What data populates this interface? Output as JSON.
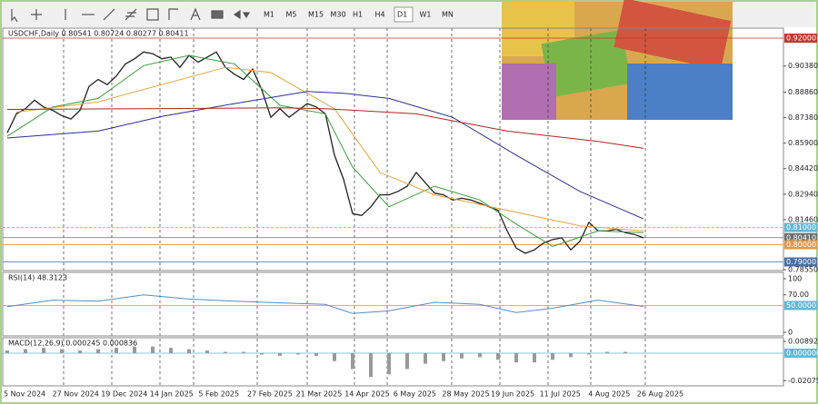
{
  "toolbar": {
    "timeframes": [
      "M1",
      "M5",
      "M15",
      "M30",
      "H1",
      "H4",
      "D1",
      "W1",
      "MN"
    ],
    "active": "D1"
  },
  "dates": [
    "5 Nov 2024",
    "27 Nov 2024",
    "19 Dec 2024",
    "14 Jan 2025",
    "5 Feb 2025",
    "27 Feb 2025",
    "21 Mar 2025",
    "14 Apr 2025",
    "6 May 2025",
    "28 May 2025",
    "19 Jun 2025",
    "11 Jul 2025",
    "4 Aug 2025",
    "26 Aug 2025"
  ],
  "chart_data": [
    {
      "type": "line",
      "title": "USDCHF,Daily  0.80541 0.80724 0.80277 0.80411",
      "xlim": [
        -0.5,
        85.4
      ],
      "ylim": [
        0.785,
        0.9258
      ],
      "yticks": [
        {
          "value": 0.9038,
          "label": "0.90380"
        },
        {
          "value": 0.8886,
          "label": "0.88860"
        },
        {
          "value": 0.8738,
          "label": "0.87380"
        },
        {
          "value": 0.859,
          "label": "0.85900"
        },
        {
          "value": 0.8442,
          "label": "0.84420"
        },
        {
          "value": 0.8294,
          "label": "0.82940"
        },
        {
          "value": 0.8146,
          "label": "0.81460"
        },
        {
          "value": 0.7855,
          "label": "0.78550"
        }
      ],
      "levels": [
        {
          "value": 0.92,
          "label": "0.92000",
          "color": "#c0392b"
        },
        {
          "value": 0.81,
          "label": "0.81000",
          "color": "#5fb8d6"
        },
        {
          "value": 0.8041,
          "label": "0.80410",
          "color": "#6d6d6d"
        },
        {
          "value": 0.8,
          "label": "0.80000",
          "color": "#e39b3c"
        },
        {
          "value": 0.79,
          "label": "0.79000",
          "color": "#4a6fa5"
        }
      ],
      "series": [
        {
          "color": "#222222",
          "x": [
            0,
            1,
            2,
            3,
            4,
            5,
            6,
            7,
            8,
            9,
            10,
            11,
            12,
            13,
            14,
            15,
            16,
            17,
            18,
            19,
            20,
            21,
            22,
            23,
            24,
            25,
            26,
            27,
            28,
            29,
            30,
            31,
            32,
            33,
            34,
            35,
            36,
            37,
            38,
            39,
            40,
            41,
            42,
            43,
            44,
            45,
            46,
            47,
            48,
            49,
            50,
            51,
            52,
            53,
            54,
            55,
            56,
            57,
            58,
            59,
            60,
            61,
            62,
            63,
            64,
            65,
            66,
            67,
            68,
            69,
            70
          ],
          "values": [
            0.865,
            0.876,
            0.879,
            0.884,
            0.88,
            0.878,
            0.875,
            0.873,
            0.878,
            0.892,
            0.896,
            0.893,
            0.898,
            0.905,
            0.908,
            0.912,
            0.911,
            0.908,
            0.909,
            0.903,
            0.91,
            0.906,
            0.909,
            0.912,
            0.903,
            0.899,
            0.896,
            0.902,
            0.89,
            0.874,
            0.879,
            0.874,
            0.878,
            0.882,
            0.88,
            0.876,
            0.852,
            0.838,
            0.818,
            0.817,
            0.822,
            0.829,
            0.829,
            0.831,
            0.834,
            0.842,
            0.836,
            0.83,
            0.829,
            0.826,
            0.827,
            0.826,
            0.824,
            0.822,
            0.82,
            0.808,
            0.798,
            0.795,
            0.797,
            0.801,
            0.803,
            0.804,
            0.797,
            0.802,
            0.813,
            0.808,
            0.808,
            0.809,
            0.807,
            0.806,
            0.804
          ]
        },
        {
          "color": "#3a9b3a",
          "x": [
            0,
            5,
            10,
            15,
            20,
            25,
            30,
            35,
            38,
            42,
            47,
            52,
            56,
            60,
            65,
            70
          ],
          "values": [
            0.863,
            0.88,
            0.885,
            0.904,
            0.91,
            0.905,
            0.881,
            0.876,
            0.845,
            0.822,
            0.834,
            0.826,
            0.812,
            0.799,
            0.808,
            0.807
          ]
        },
        {
          "color": "#e6a23c",
          "x": [
            1,
            10,
            17,
            24,
            29,
            36,
            41,
            47,
            55,
            63,
            70
          ],
          "values": [
            0.877,
            0.883,
            0.893,
            0.903,
            0.9,
            0.879,
            0.842,
            0.829,
            0.82,
            0.811,
            0.808
          ]
        },
        {
          "color": "#2c2f8f",
          "x": [
            0,
            10,
            17,
            25,
            33,
            37,
            42,
            49,
            56,
            63,
            70
          ],
          "values": [
            0.862,
            0.866,
            0.8745,
            0.882,
            0.889,
            0.888,
            0.885,
            0.874,
            0.852,
            0.831,
            0.815
          ]
        },
        {
          "color": "#b22222",
          "x": [
            0,
            15,
            30,
            35,
            45,
            55,
            65,
            70
          ],
          "values": [
            0.8786,
            0.879,
            0.8795,
            0.879,
            0.876,
            0.866,
            0.86,
            0.856
          ]
        }
      ]
    },
    {
      "type": "line",
      "title": "RSI(14) 48.3123",
      "xlim": [
        -0.5,
        85.4
      ],
      "ylim": [
        -6.8,
        111.9
      ],
      "yticks": [
        100,
        {
          "value": 70,
          "label": "70.00"
        },
        0
      ],
      "levels": [
        {
          "value": 50,
          "label": "50.0000",
          "color": "#5fb8d6"
        }
      ],
      "series": [
        {
          "color": "#4a90c8",
          "x": [
            0,
            5,
            10,
            15,
            20,
            25,
            30,
            35,
            38,
            42,
            47,
            52,
            56,
            60,
            65,
            70
          ],
          "values": [
            48,
            60,
            58,
            70,
            62,
            58,
            55,
            52,
            35,
            40,
            56,
            52,
            37,
            45,
            60,
            48.3
          ]
        }
      ]
    },
    {
      "type": "histogram",
      "title": "MACD(12,26,9) 0.000245 0.000836",
      "xlim": [
        -0.5,
        85.4
      ],
      "ylim": [
        -0.0247,
        0.01166
      ],
      "yticks": [
        {
          "value": 0.008923,
          "label": "0.008923"
        },
        {
          "value": -0.020757,
          "label": "-0.020757"
        }
      ],
      "levels": [
        {
          "value": 0,
          "label": "0.000000",
          "color": "#5fb8d6"
        }
      ],
      "color": "#9a9a9a",
      "x": [
        0,
        2,
        4,
        6,
        8,
        10,
        12,
        14,
        16,
        18,
        20,
        22,
        24,
        26,
        28,
        30,
        32,
        34,
        36,
        38,
        40,
        42,
        44,
        46,
        48,
        50,
        52,
        54,
        56,
        58,
        60,
        62,
        64,
        66,
        68,
        70
      ],
      "values": [
        0.002,
        0.003,
        0.004,
        0.003,
        0.002,
        0.003,
        0.004,
        0.005,
        0.005,
        0.004,
        0.003,
        0.002,
        0.001,
        0.001,
        -0.001,
        -0.002,
        -0.001,
        -0.002,
        -0.006,
        -0.012,
        -0.018,
        -0.016,
        -0.012,
        -0.008,
        -0.006,
        -0.004,
        -0.003,
        -0.005,
        -0.007,
        -0.007,
        -0.005,
        -0.003,
        -0.001,
        0.001,
        0.001,
        0.0002
      ]
    }
  ]
}
